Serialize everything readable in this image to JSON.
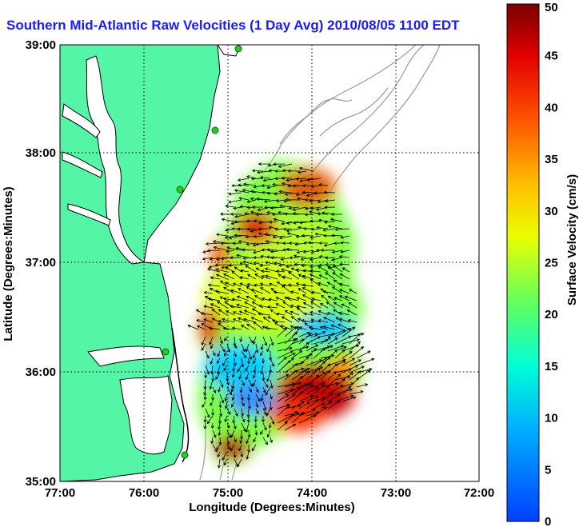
{
  "title": "Southern Mid-Atlantic Raw Velocities (1 Day Avg) 2010/08/05 1100 EDT",
  "chart_data": {
    "type": "heatmap",
    "xlabel": "Longitude (Degrees:Minutes)",
    "ylabel": "Latitude (Degrees:Minutes)",
    "x_ticks": [
      "77:00",
      "76:00",
      "75:00",
      "74:00",
      "73:00",
      "72:00"
    ],
    "y_ticks": [
      "39:00",
      "38:00",
      "37:00",
      "36:00",
      "35:00"
    ],
    "xlim": [
      -77,
      -72
    ],
    "ylim": [
      35,
      39
    ],
    "grid": true,
    "colorbar": {
      "label": "Surface Velocity (cm/s)",
      "range": [
        0,
        50
      ],
      "ticks": [
        "0",
        "5",
        "10",
        "15",
        "20",
        "25",
        "30",
        "35",
        "40",
        "45",
        "50"
      ]
    },
    "colors": {
      "land": "#55f5a8",
      "coast": "#000000",
      "bathymetry": "#999999",
      "station": "#22cc22"
    }
  }
}
